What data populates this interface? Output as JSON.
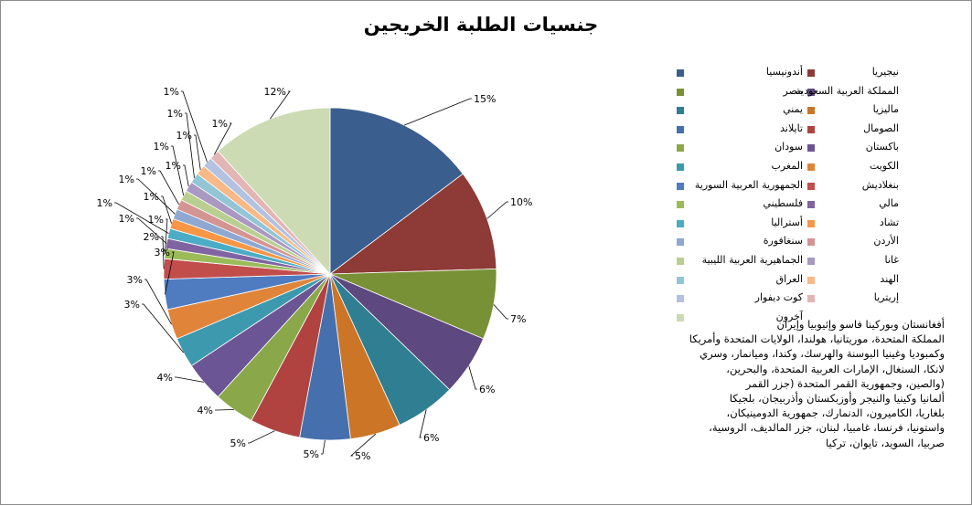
{
  "chart_data": {
    "type": "pie",
    "title": "جنسيات الطلبة الخريجين",
    "categories": [
      "أندونيسيا",
      "نيجيريا",
      "مصر",
      "المملكة العربية السعودية",
      "يمني",
      "ماليزيا",
      "تايلاند",
      "الصومال",
      "سودان",
      "باكستان",
      "المغرب",
      "الكويت",
      "الجمهورية العربية السورية",
      "بنغلاديش",
      "فلسطيني",
      "مالي",
      "أستراليا",
      "تشاد",
      "سنغافورة",
      "الأردن",
      "الجماهيرية العربية الليبية",
      "غانا",
      "العراق",
      "الهند",
      "كوت ديفوار",
      "إريتريا",
      "آخرون"
    ],
    "values": [
      15,
      10,
      7,
      6,
      6,
      5,
      5,
      5,
      4,
      4,
      3,
      3,
      3,
      2,
      1,
      1,
      1,
      1,
      1,
      1,
      1,
      1,
      1,
      1,
      1,
      1,
      12
    ],
    "data_labels": [
      "15%",
      "10%",
      "7%",
      "6%",
      "6%",
      "5%",
      "5%",
      "5%",
      "4%",
      "4%",
      "3%",
      "3%",
      "3%",
      "2%",
      "1%",
      "1%",
      "1%",
      "1%",
      "1%",
      "1%",
      "1%",
      "1%",
      "1%",
      "1%",
      "1%",
      "1%",
      "12%"
    ],
    "colors": [
      "#3A5E8E",
      "#8E3A36",
      "#789136",
      "#5E4880",
      "#2F7E92",
      "#CC7527",
      "#4670AD",
      "#B04340",
      "#8AA84A",
      "#6C5594",
      "#3D9AAE",
      "#E0843A",
      "#4F7BC0",
      "#C24E4B",
      "#9BBB59",
      "#8064A2",
      "#4BACC6",
      "#F79646",
      "#8EA8D2",
      "#D49492",
      "#B9CF91",
      "#A898C2",
      "#92C5D6",
      "#F8B987",
      "#B2C2E0",
      "#E2B6B5",
      "#CCDBB4"
    ],
    "legend_position": "right"
  },
  "note_lines": [
    "أفغانستان وبوركينا فاسو وإثيوبيا وإيران",
    "المملكة المتحدة، موريتانيا، هولندا، الولايات المتحدة وأمريكا",
    "وكمبوديا وغينيا البوسنة والهرسك، وكندا، وميانمار، وسري",
    "لانكا، السنغال، الإمارات العربية المتحدة، والبحرين،",
    "(والصين، وجمهورية القمر المتحدة (جزر القمر",
    "ألمانيا وكينيا والنيجر وأوزبكستان وأذربيجان، بلجيكا",
    "بلغاريا، الكاميرون، الدنمارك، جمهورية الدومينيكان،",
    "واستونيا، فرنسا، غامبيا، لبنان، جزر المالديف، الروسية،",
    "صربيا، السويد، تايوان، تركيا"
  ]
}
